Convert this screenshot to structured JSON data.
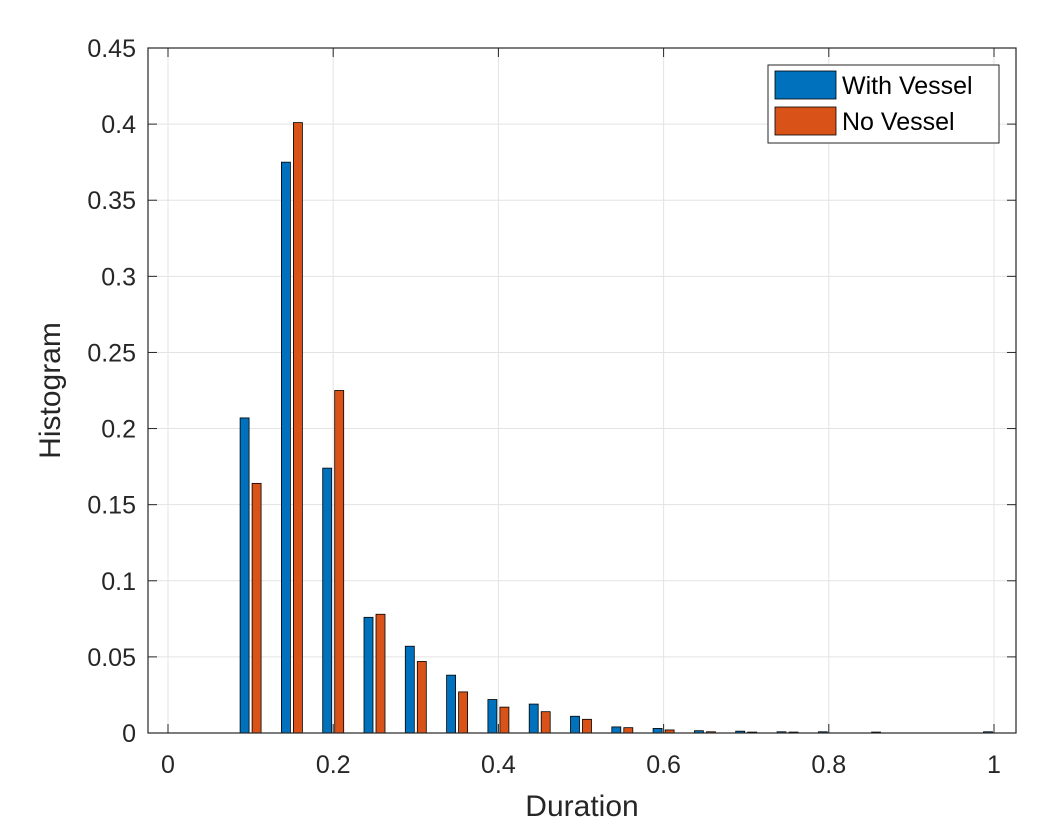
{
  "chart_data": {
    "type": "bar",
    "title": "",
    "xlabel": "Duration",
    "ylabel": "Histogram",
    "xlim": [
      0,
      1
    ],
    "ylim": [
      0,
      0.45
    ],
    "grid": true,
    "legend_position": "top-right",
    "x_ticks": [
      "0",
      "0.2",
      "0.4",
      "0.6",
      "0.8",
      "1"
    ],
    "x_tick_values": [
      0,
      0.2,
      0.4,
      0.6,
      0.8,
      1
    ],
    "y_ticks": [
      "0",
      "0.05",
      "0.1",
      "0.15",
      "0.2",
      "0.25",
      "0.3",
      "0.35",
      "0.4",
      "0.45"
    ],
    "y_tick_values": [
      0,
      0.05,
      0.1,
      0.15,
      0.2,
      0.25,
      0.3,
      0.35,
      0.4,
      0.45
    ],
    "x": [
      0.1,
      0.15,
      0.2,
      0.25,
      0.3,
      0.35,
      0.4,
      0.45,
      0.5,
      0.55,
      0.6,
      0.65,
      0.7,
      0.75,
      0.8,
      0.85,
      0.9,
      0.95,
      1.0
    ],
    "series": [
      {
        "name": "With Vessel",
        "color": "#0072BD",
        "values": [
          0.207,
          0.375,
          0.174,
          0.076,
          0.057,
          0.038,
          0.022,
          0.019,
          0.011,
          0.004,
          0.003,
          0.0015,
          0.0012,
          0.0008,
          0.0008,
          0.0,
          0.0,
          0.0,
          0.0008
        ]
      },
      {
        "name": "No Vessel",
        "color": "#D95319",
        "values": [
          0.164,
          0.401,
          0.225,
          0.078,
          0.047,
          0.027,
          0.017,
          0.014,
          0.009,
          0.0035,
          0.002,
          0.0008,
          0.0006,
          0.0006,
          0.0,
          0.0006,
          0.0,
          0.0,
          0.0
        ]
      }
    ]
  }
}
